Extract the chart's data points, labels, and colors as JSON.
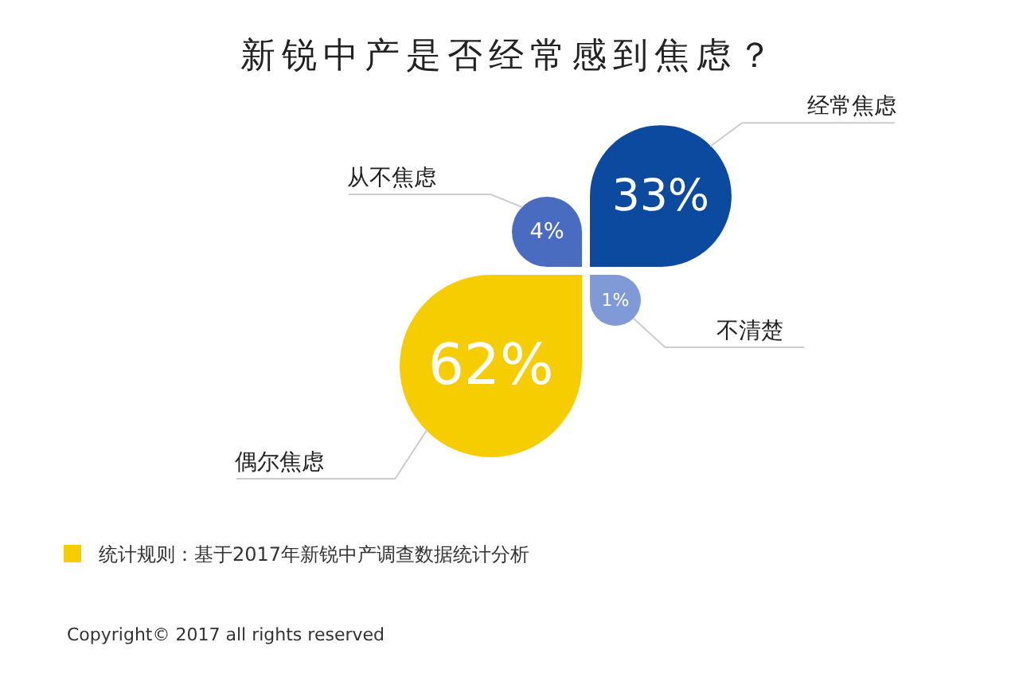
{
  "chart_data": {
    "type": "other",
    "title": "新锐中产是否经常感到焦虑？",
    "categories": [
      "经常焦虑",
      "不清楚",
      "偶尔焦虑",
      "从不焦虑"
    ],
    "values": [
      33,
      1,
      62,
      4
    ],
    "value_labels": [
      "33%",
      "1%",
      "62%",
      "4%"
    ],
    "colors": [
      "#0b4a9e",
      "#7f9ad6",
      "#f5cd00",
      "#4a6cc0"
    ],
    "annotations": [
      "统计规则：基于2017年新锐中产调查数据统计分析",
      "Copyright© 2017 all rights reserved"
    ]
  }
}
